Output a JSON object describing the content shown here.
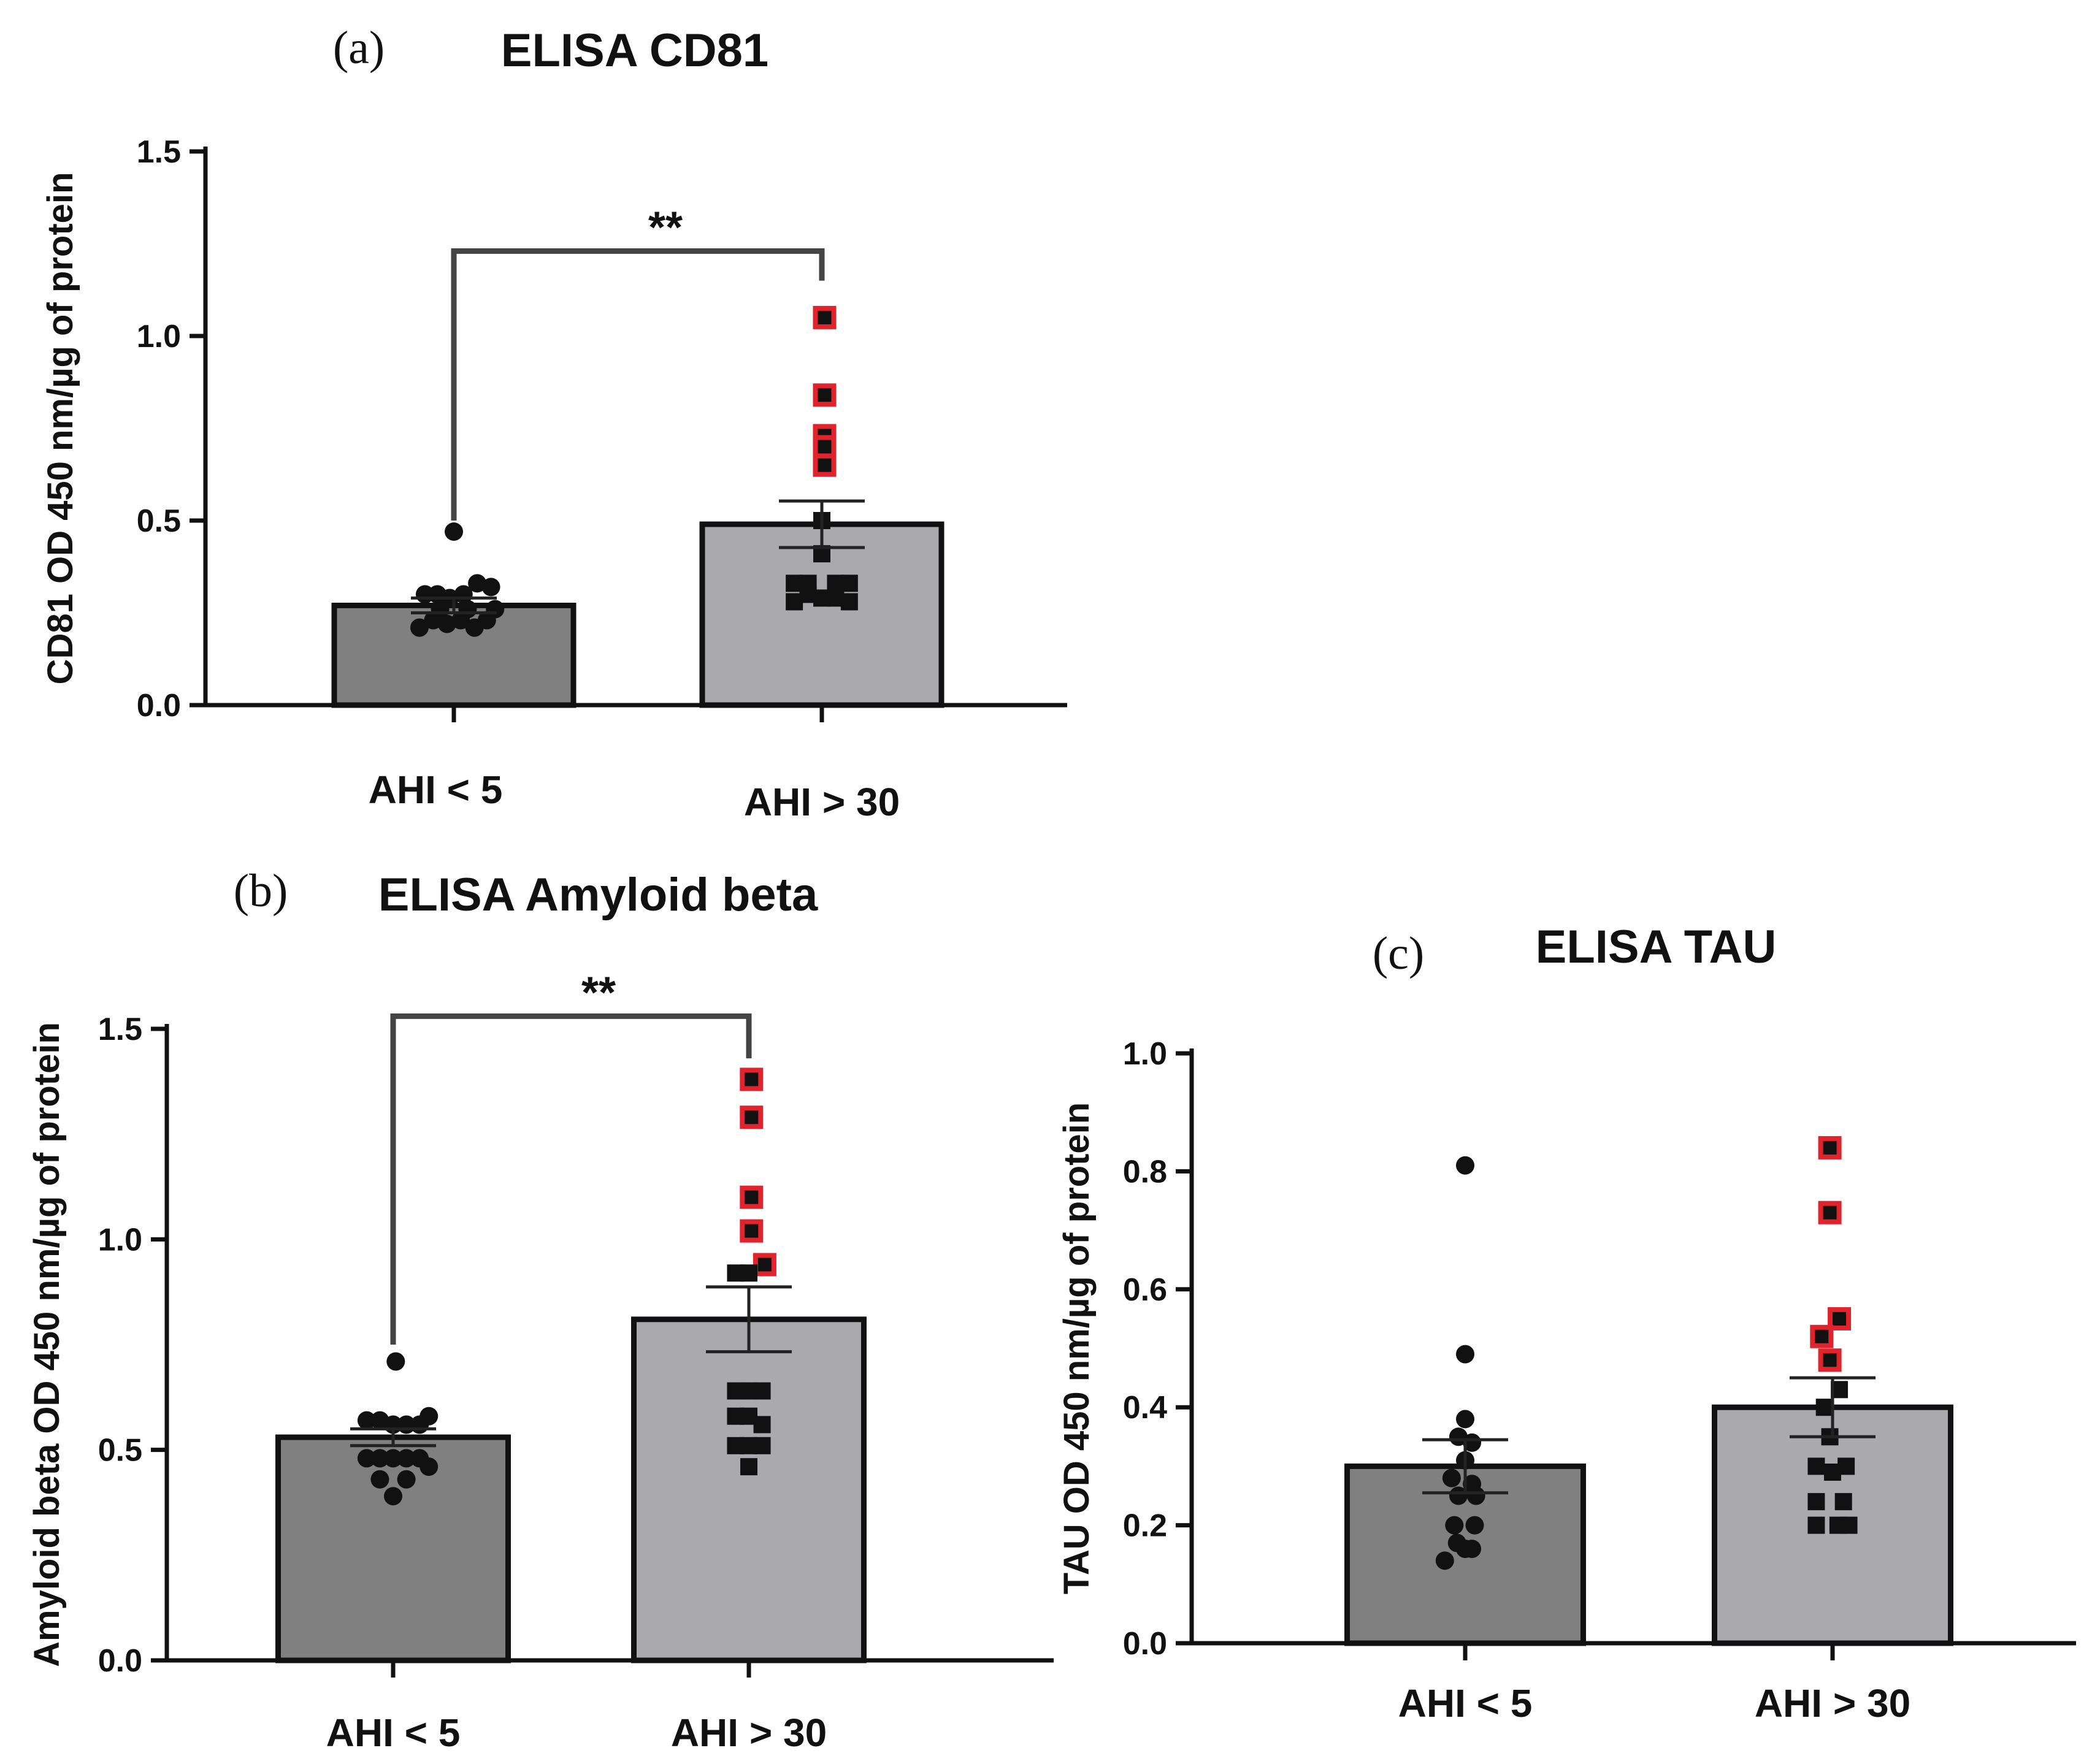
{
  "chart_data": [
    {
      "panel": "(a)",
      "title": "ELISA CD81",
      "type": "bar",
      "ylabel": "CD81 OD 450 nm/µg of protein",
      "ylim": [
        0,
        1.5
      ],
      "yticks": [
        0.0,
        0.5,
        1.0,
        1.5
      ],
      "ytick_labels": [
        "0.0",
        "0.5",
        "1.0",
        "1.5"
      ],
      "categories": [
        "AHI < 5",
        "AHI > 30"
      ],
      "values": [
        0.27,
        0.49
      ],
      "sem": [
        0.02,
        0.063
      ],
      "bar_colors": [
        "#808080",
        "#a9a9ae"
      ],
      "significance": {
        "label": "**",
        "bracket_y": 1.23,
        "left_end": 0.5,
        "right_end": 1.15
      },
      "points": [
        {
          "x": 0.0,
          "y": 0.47
        },
        {
          "x": -0.21,
          "y": 0.3
        },
        {
          "x": -0.12,
          "y": 0.3
        },
        {
          "x": -0.03,
          "y": 0.29
        },
        {
          "x": 0.07,
          "y": 0.3
        },
        {
          "x": 0.17,
          "y": 0.33
        },
        {
          "x": 0.27,
          "y": 0.32
        },
        {
          "x": -0.25,
          "y": 0.21
        },
        {
          "x": -0.15,
          "y": 0.23
        },
        {
          "x": -0.05,
          "y": 0.22
        },
        {
          "x": 0.05,
          "y": 0.23
        },
        {
          "x": 0.15,
          "y": 0.21
        },
        {
          "x": 0.24,
          "y": 0.23
        },
        {
          "x": 0.1,
          "y": 0.26
        },
        {
          "x": -0.1,
          "y": 0.26
        },
        {
          "x": 0.3,
          "y": 0.26
        }
      ],
      "points2": [
        {
          "x": 0.02,
          "y": 1.05,
          "hl": true
        },
        {
          "x": 0.02,
          "y": 0.84,
          "hl": true
        },
        {
          "x": 0.02,
          "y": 0.73,
          "hl": true
        },
        {
          "x": 0.02,
          "y": 0.7,
          "hl": true
        },
        {
          "x": 0.02,
          "y": 0.65,
          "hl": true
        },
        {
          "x": 0.0,
          "y": 0.5,
          "hl": false
        },
        {
          "x": 0.0,
          "y": 0.41,
          "hl": false
        },
        {
          "x": -0.2,
          "y": 0.33,
          "hl": false
        },
        {
          "x": -0.1,
          "y": 0.33,
          "hl": false
        },
        {
          "x": 0.1,
          "y": 0.33,
          "hl": false
        },
        {
          "x": 0.2,
          "y": 0.33,
          "hl": false
        },
        {
          "x": -0.2,
          "y": 0.28,
          "hl": false
        },
        {
          "x": -0.1,
          "y": 0.3,
          "hl": false
        },
        {
          "x": 0.0,
          "y": 0.29,
          "hl": false
        },
        {
          "x": 0.1,
          "y": 0.29,
          "hl": false
        },
        {
          "x": 0.2,
          "y": 0.28,
          "hl": false
        }
      ]
    },
    {
      "panel": "(b)",
      "title": "ELISA Amyloid beta",
      "type": "bar",
      "ylabel": "Amyloid beta OD 450 nm/µg of protein",
      "ylim": [
        0,
        1.5
      ],
      "yticks": [
        0.0,
        0.5,
        1.0,
        1.5
      ],
      "ytick_labels": [
        "0.0",
        "0.5",
        "1.0",
        "1.5"
      ],
      "categories": [
        "AHI < 5",
        "AHI > 30"
      ],
      "values": [
        0.53,
        0.81
      ],
      "sem": [
        0.02,
        0.077
      ],
      "bar_colors": [
        "#808080",
        "#a9a9ae"
      ],
      "significance": {
        "label": "**",
        "bracket_y": 1.53,
        "left_end": 0.75,
        "right_end": 1.43
      },
      "points": [
        {
          "x": 0.02,
          "y": 0.71
        },
        {
          "x": -0.2,
          "y": 0.57
        },
        {
          "x": -0.1,
          "y": 0.57
        },
        {
          "x": 0.0,
          "y": 0.56
        },
        {
          "x": 0.1,
          "y": 0.56
        },
        {
          "x": 0.2,
          "y": 0.56
        },
        {
          "x": 0.27,
          "y": 0.58
        },
        {
          "x": -0.2,
          "y": 0.48
        },
        {
          "x": -0.1,
          "y": 0.48
        },
        {
          "x": 0.0,
          "y": 0.48
        },
        {
          "x": 0.1,
          "y": 0.48
        },
        {
          "x": 0.2,
          "y": 0.48
        },
        {
          "x": 0.27,
          "y": 0.46
        },
        {
          "x": -0.1,
          "y": 0.43
        },
        {
          "x": 0.0,
          "y": 0.39
        },
        {
          "x": 0.1,
          "y": 0.43
        }
      ],
      "points2": [
        {
          "x": 0.02,
          "y": 1.38,
          "hl": true
        },
        {
          "x": 0.02,
          "y": 1.29,
          "hl": true
        },
        {
          "x": 0.02,
          "y": 1.1,
          "hl": true
        },
        {
          "x": 0.02,
          "y": 1.02,
          "hl": true
        },
        {
          "x": 0.12,
          "y": 0.94,
          "hl": true
        },
        {
          "x": -0.1,
          "y": 0.92,
          "hl": false
        },
        {
          "x": 0.0,
          "y": 0.92,
          "hl": false
        },
        {
          "x": -0.1,
          "y": 0.64,
          "hl": false
        },
        {
          "x": 0.0,
          "y": 0.64,
          "hl": false
        },
        {
          "x": 0.1,
          "y": 0.64,
          "hl": false
        },
        {
          "x": -0.1,
          "y": 0.58,
          "hl": false
        },
        {
          "x": 0.0,
          "y": 0.58,
          "hl": false
        },
        {
          "x": 0.1,
          "y": 0.56,
          "hl": false
        },
        {
          "x": -0.1,
          "y": 0.51,
          "hl": false
        },
        {
          "x": 0.0,
          "y": 0.51,
          "hl": false
        },
        {
          "x": 0.1,
          "y": 0.51,
          "hl": false
        },
        {
          "x": 0.0,
          "y": 0.46,
          "hl": false
        }
      ]
    },
    {
      "panel": "(c)",
      "title": "ELISA TAU",
      "type": "bar",
      "ylabel": "TAU OD 450 nm/µg of protein",
      "ylim": [
        0,
        1.0
      ],
      "yticks": [
        0.0,
        0.2,
        0.4,
        0.6,
        0.8,
        1.0
      ],
      "ytick_labels": [
        "0.0",
        "0.2",
        "0.4",
        "0.6",
        "0.8",
        "1.0"
      ],
      "categories": [
        "AHI < 5",
        "AHI > 30"
      ],
      "values": [
        0.3,
        0.4
      ],
      "sem": [
        0.045,
        0.05
      ],
      "bar_colors": [
        "#808080",
        "#a9a9ae"
      ],
      "significance": null,
      "points": [
        {
          "x": 0.0,
          "y": 0.81
        },
        {
          "x": 0.0,
          "y": 0.49
        },
        {
          "x": 0.0,
          "y": 0.38
        },
        {
          "x": -0.05,
          "y": 0.35
        },
        {
          "x": 0.05,
          "y": 0.34
        },
        {
          "x": 0.0,
          "y": 0.31
        },
        {
          "x": -0.1,
          "y": 0.28
        },
        {
          "x": 0.05,
          "y": 0.27
        },
        {
          "x": -0.05,
          "y": 0.25
        },
        {
          "x": 0.08,
          "y": 0.25
        },
        {
          "x": -0.08,
          "y": 0.2
        },
        {
          "x": 0.07,
          "y": 0.2
        },
        {
          "x": -0.06,
          "y": 0.17
        },
        {
          "x": 0.05,
          "y": 0.16
        },
        {
          "x": -0.15,
          "y": 0.14
        },
        {
          "x": 0.0,
          "y": 0.16
        }
      ],
      "points2": [
        {
          "x": -0.02,
          "y": 0.84,
          "hl": true
        },
        {
          "x": -0.02,
          "y": 0.73,
          "hl": true
        },
        {
          "x": 0.05,
          "y": 0.55,
          "hl": true
        },
        {
          "x": -0.08,
          "y": 0.52,
          "hl": true
        },
        {
          "x": -0.02,
          "y": 0.48,
          "hl": true
        },
        {
          "x": 0.05,
          "y": 0.43,
          "hl": false
        },
        {
          "x": -0.06,
          "y": 0.4,
          "hl": false
        },
        {
          "x": -0.02,
          "y": 0.35,
          "hl": false
        },
        {
          "x": -0.12,
          "y": 0.3,
          "hl": false
        },
        {
          "x": 0.0,
          "y": 0.29,
          "hl": false
        },
        {
          "x": 0.1,
          "y": 0.3,
          "hl": false
        },
        {
          "x": -0.12,
          "y": 0.24,
          "hl": false
        },
        {
          "x": 0.08,
          "y": 0.24,
          "hl": false
        },
        {
          "x": -0.12,
          "y": 0.2,
          "hl": false
        },
        {
          "x": 0.04,
          "y": 0.2,
          "hl": false
        },
        {
          "x": 0.12,
          "y": 0.2,
          "hl": false
        }
      ]
    }
  ]
}
